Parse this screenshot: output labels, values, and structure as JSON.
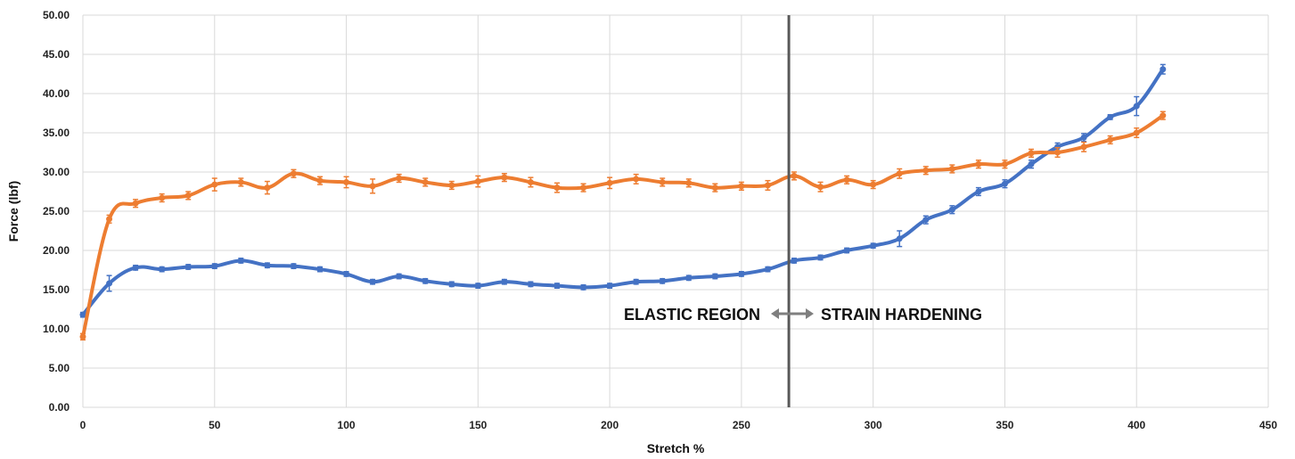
{
  "chart_data": {
    "type": "line",
    "title": "",
    "xlabel": "Stretch %",
    "ylabel": "Force (lbf)",
    "xlim": [
      0,
      450
    ],
    "ylim": [
      0,
      50
    ],
    "x_ticks": [
      "0",
      "50",
      "100",
      "150",
      "200",
      "250",
      "300",
      "350",
      "400",
      "450"
    ],
    "y_ticks": [
      "0.00",
      "5.00",
      "10.00",
      "15.00",
      "20.00",
      "25.00",
      "30.00",
      "35.00",
      "40.00",
      "45.00",
      "50.00"
    ],
    "grid": true,
    "legend": "none",
    "x": [
      0,
      10,
      20,
      30,
      40,
      50,
      60,
      70,
      80,
      90,
      100,
      110,
      120,
      130,
      140,
      150,
      160,
      170,
      180,
      190,
      200,
      210,
      220,
      230,
      240,
      250,
      260,
      270,
      280,
      290,
      300,
      310,
      320,
      330,
      340,
      350,
      360,
      370,
      380,
      390,
      400,
      410
    ],
    "series": [
      {
        "color": "#4472c4",
        "values": [
          11.8,
          15.8,
          17.8,
          17.6,
          17.9,
          18.0,
          18.7,
          18.1,
          18.0,
          17.6,
          17.0,
          16.0,
          16.7,
          16.1,
          15.7,
          15.5,
          16.0,
          15.7,
          15.5,
          15.3,
          15.5,
          16.0,
          16.1,
          16.5,
          16.7,
          17.0,
          17.6,
          18.7,
          19.1,
          20.0,
          20.6,
          21.5,
          23.9,
          25.2,
          27.5,
          28.5,
          31.0,
          33.2,
          34.4,
          37.0,
          38.4,
          43.1
        ],
        "errors": [
          0.3,
          1.0,
          0.3,
          0.3,
          0.3,
          0.3,
          0.3,
          0.3,
          0.3,
          0.3,
          0.3,
          0.3,
          0.3,
          0.3,
          0.3,
          0.3,
          0.3,
          0.3,
          0.3,
          0.3,
          0.3,
          0.3,
          0.3,
          0.3,
          0.3,
          0.3,
          0.3,
          0.3,
          0.3,
          0.3,
          0.3,
          1.0,
          0.5,
          0.5,
          0.5,
          0.5,
          0.5,
          0.5,
          0.5,
          0.3,
          1.2,
          0.6
        ]
      },
      {
        "color": "#ed7d31",
        "values": [
          9.0,
          24.0,
          26.0,
          26.7,
          27.0,
          28.4,
          28.7,
          28.0,
          29.8,
          28.9,
          28.7,
          28.2,
          29.2,
          28.7,
          28.3,
          28.8,
          29.3,
          28.7,
          28.0,
          28.0,
          28.6,
          29.1,
          28.7,
          28.6,
          28.0,
          28.2,
          28.3,
          29.5,
          28.1,
          29.0,
          28.4,
          29.8,
          30.2,
          30.4,
          31.0,
          31.0,
          32.4,
          32.5,
          33.2,
          34.1,
          35.0,
          37.2
        ],
        "errors": [
          0.4,
          0.5,
          0.5,
          0.5,
          0.5,
          0.8,
          0.5,
          0.8,
          0.5,
          0.5,
          0.7,
          0.9,
          0.5,
          0.5,
          0.5,
          0.7,
          0.5,
          0.6,
          0.6,
          0.5,
          0.7,
          0.6,
          0.5,
          0.5,
          0.5,
          0.5,
          0.6,
          0.5,
          0.6,
          0.5,
          0.5,
          0.6,
          0.5,
          0.5,
          0.5,
          0.5,
          0.5,
          0.6,
          0.6,
          0.5,
          0.6,
          0.5
        ]
      }
    ],
    "divider_x": 268,
    "annotations": {
      "left": "ELASTIC REGION",
      "right": "STRAIN HARDENING"
    },
    "colors": {
      "divider": "#595959",
      "arrow": "#7f7f7f"
    }
  }
}
